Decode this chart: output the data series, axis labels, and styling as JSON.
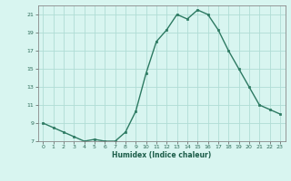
{
  "x": [
    0,
    1,
    2,
    3,
    4,
    5,
    6,
    7,
    8,
    9,
    10,
    11,
    12,
    13,
    14,
    15,
    16,
    17,
    18,
    19,
    20,
    21,
    22,
    23
  ],
  "y": [
    9,
    8.5,
    8,
    7.5,
    7,
    7.2,
    7,
    7,
    8,
    10.3,
    14.5,
    18,
    19.3,
    21,
    20.5,
    21.5,
    21,
    19.3,
    17,
    15,
    13,
    11,
    10.5,
    10
  ],
  "title": "",
  "xlabel": "Humidex (Indice chaleur)",
  "ylabel": "",
  "line_color": "#2d7a62",
  "marker_color": "#2d7a62",
  "bg_color": "#d8f5f0",
  "grid_color": "#b0ddd5",
  "ylim": [
    7,
    22
  ],
  "xlim": [
    -0.5,
    23.5
  ],
  "yticks": [
    7,
    9,
    11,
    13,
    15,
    17,
    19,
    21
  ],
  "xticks": [
    0,
    1,
    2,
    3,
    4,
    5,
    6,
    7,
    8,
    9,
    10,
    11,
    12,
    13,
    14,
    15,
    16,
    17,
    18,
    19,
    20,
    21,
    22,
    23
  ]
}
